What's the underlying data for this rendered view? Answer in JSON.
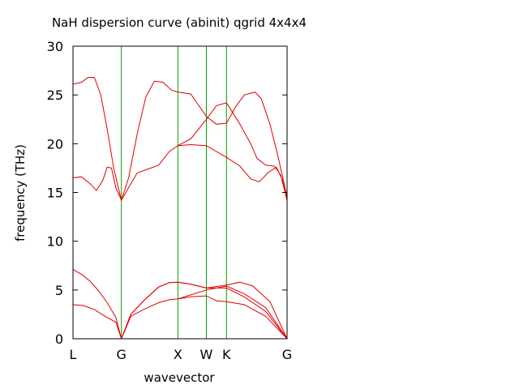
{
  "chart_data": {
    "type": "line",
    "title": "NaH dispersion curve (abinit) qgrid 4x4x4",
    "xlabel": "wavevector",
    "ylabel": "frequency (THz)",
    "ylim": [
      0,
      30
    ],
    "xlim": [
      0,
      1
    ],
    "y_ticks": [
      0,
      5,
      10,
      15,
      20,
      25,
      30
    ],
    "high_symmetry_points": [
      {
        "label": "L",
        "x": 0.0
      },
      {
        "label": "G",
        "x": 0.226
      },
      {
        "label": "X",
        "x": 0.49
      },
      {
        "label": "W",
        "x": 0.623
      },
      {
        "label": "K",
        "x": 0.717
      },
      {
        "label": "G",
        "x": 1.0
      }
    ],
    "grid": false,
    "legend": "none",
    "colors": {
      "series": "#e00000",
      "symmetry_lines": "#00a000",
      "frame": "#000000"
    },
    "series": [
      {
        "points": [
          [
            0,
            3.5
          ],
          [
            0.05,
            3.4
          ],
          [
            0.1,
            3.0
          ],
          [
            0.15,
            2.3
          ],
          [
            0.2,
            1.7
          ],
          [
            0.226,
            0
          ]
        ]
      },
      {
        "points": [
          [
            0,
            7.1
          ],
          [
            0.04,
            6.6
          ],
          [
            0.08,
            5.9
          ],
          [
            0.12,
            4.9
          ],
          [
            0.16,
            3.7
          ],
          [
            0.2,
            2.2
          ],
          [
            0.226,
            0
          ]
        ]
      },
      {
        "points": [
          [
            0.226,
            0
          ],
          [
            0.27,
            2.3
          ],
          [
            0.33,
            3.0
          ],
          [
            0.4,
            3.7
          ],
          [
            0.45,
            4.0
          ],
          [
            0.49,
            4.1
          ],
          [
            0.55,
            4.3
          ],
          [
            0.623,
            4.4
          ],
          [
            0.67,
            3.9
          ],
          [
            0.717,
            3.8
          ],
          [
            0.8,
            3.5
          ],
          [
            0.9,
            2.3
          ],
          [
            1.0,
            0
          ]
        ]
      },
      {
        "points": [
          [
            0.226,
            0
          ],
          [
            0.27,
            2.5
          ],
          [
            0.33,
            3.9
          ],
          [
            0.4,
            5.3
          ],
          [
            0.45,
            5.75
          ],
          [
            0.49,
            5.8
          ],
          [
            0.55,
            5.6
          ],
          [
            0.623,
            5.2
          ],
          [
            0.717,
            5.2
          ],
          [
            0.8,
            4.3
          ],
          [
            0.9,
            2.8
          ],
          [
            1.0,
            0
          ]
        ]
      },
      {
        "points": [
          [
            0.226,
            0
          ],
          [
            0.27,
            2.5
          ],
          [
            0.33,
            3.9
          ],
          [
            0.4,
            5.3
          ],
          [
            0.45,
            5.75
          ],
          [
            0.49,
            5.8
          ],
          [
            0.55,
            5.6
          ],
          [
            0.623,
            5.2
          ],
          [
            0.717,
            5.5
          ],
          [
            0.78,
            5.8
          ],
          [
            0.84,
            5.4
          ],
          [
            0.92,
            3.8
          ],
          [
            1.0,
            0
          ]
        ]
      },
      {
        "points": [
          [
            0.49,
            4.1
          ],
          [
            0.55,
            4.5
          ],
          [
            0.623,
            5.0
          ],
          [
            0.717,
            5.4
          ],
          [
            0.8,
            4.6
          ],
          [
            0.9,
            3.2
          ],
          [
            1.0,
            0
          ]
        ]
      },
      {
        "points": [
          [
            0,
            16.5
          ],
          [
            0.04,
            16.6
          ],
          [
            0.08,
            15.9
          ],
          [
            0.11,
            15.2
          ],
          [
            0.14,
            16.3
          ],
          [
            0.16,
            17.6
          ],
          [
            0.18,
            17.5
          ],
          [
            0.2,
            15.5
          ],
          [
            0.226,
            14.2
          ],
          [
            0.26,
            15.5
          ],
          [
            0.3,
            17.0
          ],
          [
            0.35,
            17.4
          ],
          [
            0.4,
            17.8
          ],
          [
            0.45,
            19.2
          ],
          [
            0.49,
            19.8
          ],
          [
            0.55,
            19.9
          ],
          [
            0.623,
            19.8
          ],
          [
            0.717,
            18.6
          ],
          [
            0.78,
            17.7
          ],
          [
            0.83,
            16.4
          ],
          [
            0.87,
            16.1
          ],
          [
            0.91,
            17.0
          ],
          [
            0.95,
            17.6
          ],
          [
            0.98,
            16.2
          ],
          [
            1.0,
            14.2
          ]
        ]
      },
      {
        "points": [
          [
            0,
            26.1
          ],
          [
            0.04,
            26.3
          ],
          [
            0.07,
            26.8
          ],
          [
            0.1,
            26.8
          ],
          [
            0.13,
            25.0
          ],
          [
            0.16,
            21.5
          ],
          [
            0.19,
            17.5
          ],
          [
            0.226,
            14.2
          ],
          [
            0.26,
            16.5
          ],
          [
            0.3,
            21.0
          ],
          [
            0.34,
            24.8
          ],
          [
            0.38,
            26.4
          ],
          [
            0.42,
            26.3
          ],
          [
            0.46,
            25.5
          ],
          [
            0.49,
            25.3
          ],
          [
            0.55,
            25.1
          ],
          [
            0.623,
            22.8
          ],
          [
            0.67,
            22.0
          ],
          [
            0.717,
            22.1
          ],
          [
            0.76,
            23.8
          ],
          [
            0.8,
            25.0
          ],
          [
            0.85,
            25.3
          ],
          [
            0.88,
            24.6
          ],
          [
            0.92,
            22.0
          ],
          [
            0.96,
            18.5
          ],
          [
            1.0,
            14.5
          ]
        ]
      },
      {
        "points": [
          [
            0.49,
            19.8
          ],
          [
            0.55,
            20.5
          ],
          [
            0.623,
            22.5
          ],
          [
            0.67,
            23.9
          ],
          [
            0.717,
            24.2
          ],
          [
            0.78,
            22.0
          ],
          [
            0.83,
            20.0
          ],
          [
            0.86,
            18.5
          ],
          [
            0.9,
            17.8
          ],
          [
            0.94,
            17.7
          ],
          [
            0.97,
            16.8
          ],
          [
            1.0,
            14.2
          ]
        ]
      }
    ]
  }
}
